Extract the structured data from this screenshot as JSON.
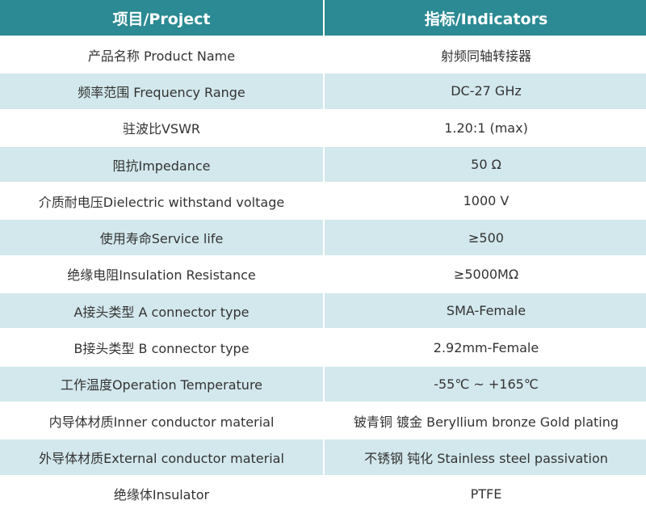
{
  "table": {
    "header": [
      "项目/Project",
      "指标/Indicators"
    ],
    "rows": [
      [
        "产品名称 Product Name",
        "射频同轴转接器"
      ],
      [
        "频率范围 Frequency Range",
        "DC-27 GHz"
      ],
      [
        "驻波比VSWR",
        "1.20:1 (max)"
      ],
      [
        "阻抗Impedance",
        "50 Ω"
      ],
      [
        "介质耐电压Dielectric withstand voltage",
        "1000 V"
      ],
      [
        "使用寿命Service life",
        "≥500"
      ],
      [
        "绝缘电阻Insulation Resistance",
        "≥5000MΩ"
      ],
      [
        "A接头类型 A connector type",
        "SMA-Female"
      ],
      [
        "B接头类型 B connector type",
        "2.92mm-Female"
      ],
      [
        "工作温度Operation Temperature",
        "-55℃ ~ +165℃"
      ],
      [
        "内导体材质Inner conductor material",
        "铍青铜 镀金 Beryllium bronze Gold plating"
      ],
      [
        "外导体材质External conductor material",
        "不锈钢 钝化 Stainless steel passivation"
      ],
      [
        "绝缘体Insulator",
        "PTFE"
      ]
    ]
  }
}
